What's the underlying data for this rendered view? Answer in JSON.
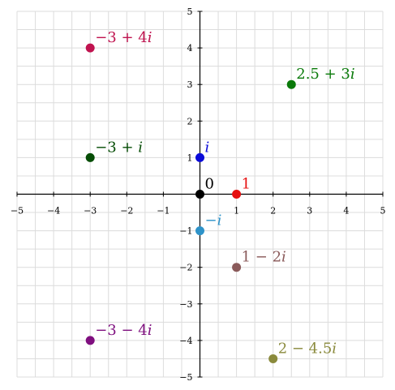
{
  "chart_data": {
    "type": "scatter",
    "title": "",
    "xlabel": "",
    "ylabel": "",
    "xlim": [
      -5,
      5
    ],
    "ylim": [
      -5,
      5
    ],
    "grid": true,
    "x_ticks": [
      -5,
      -4,
      -3,
      -2,
      -1,
      1,
      2,
      3,
      4,
      5
    ],
    "y_ticks": [
      -5,
      -4,
      -3,
      -2,
      -1,
      1,
      2,
      3,
      4,
      5
    ],
    "x_tick_labels": [
      "−5",
      "−4",
      "−3",
      "−2",
      "−1",
      "1",
      "2",
      "3",
      "4",
      "5"
    ],
    "y_tick_labels": [
      "−5",
      "−4",
      "−3",
      "−2",
      "−1",
      "1",
      "2",
      "3",
      "4",
      "5"
    ],
    "points": [
      {
        "label": "−3 + 4i",
        "x": -3,
        "y": 4,
        "color": "#c0134f"
      },
      {
        "label": "2.5 + 3i",
        "x": 2.5,
        "y": 3,
        "color": "#0a7a0a"
      },
      {
        "label": "−3 + i",
        "x": -3,
        "y": 1,
        "color": "#064d06"
      },
      {
        "label": "i",
        "x": 0,
        "y": 1,
        "color": "#0a0ad9"
      },
      {
        "label": "0",
        "x": 0,
        "y": 0,
        "color": "#000000"
      },
      {
        "label": "1",
        "x": 1,
        "y": 0,
        "color": "#e61010"
      },
      {
        "label": "−i",
        "x": 0,
        "y": -1,
        "color": "#2e93c9"
      },
      {
        "label": "1 − 2i",
        "x": 1,
        "y": -2,
        "color": "#8a5a5a"
      },
      {
        "label": "−3 − 4i",
        "x": -3,
        "y": -4,
        "color": "#7f0f7f"
      },
      {
        "label": "2 − 4.5i",
        "x": 2,
        "y": -4.5,
        "color": "#8a8a3c"
      }
    ]
  }
}
